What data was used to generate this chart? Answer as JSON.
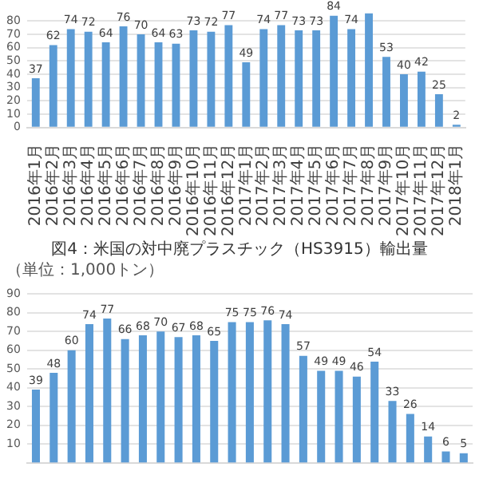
{
  "chart_data": [
    {
      "type": "bar",
      "categories": [
        "2016年1月",
        "2016年2月",
        "2016年3月",
        "2016年4月",
        "2016年5月",
        "2016年6月",
        "2016年7月",
        "2016年8月",
        "2016年9月",
        "2016年10月",
        "2016年11月",
        "2016年12月",
        "2017年1月",
        "2017年2月",
        "2017年3月",
        "2017年4月",
        "2017年5月",
        "2017年6月",
        "2017年7月",
        "2017年8月",
        "2017年9月",
        "2017年10月",
        "2017年11月",
        "2017年12月",
        "2018年1月"
      ],
      "values": [
        37,
        62,
        74,
        72,
        64,
        76,
        70,
        64,
        63,
        73,
        72,
        77,
        49,
        74,
        77,
        73,
        73,
        84,
        74,
        86,
        53,
        40,
        42,
        25,
        2
      ],
      "value_labels": [
        "37",
        "62",
        "74",
        "72",
        "64",
        "76",
        "70",
        "64",
        "63",
        "73",
        "72",
        "77",
        "49",
        "74",
        "77",
        "73",
        "73",
        "84",
        "74",
        null,
        "53",
        "40",
        "42",
        "25",
        "2"
      ],
      "color": "#5b9bd5",
      "ylim": [
        0,
        86
      ],
      "yticks": [
        0,
        10,
        20,
        30,
        40,
        50,
        60,
        70,
        80
      ],
      "grid": "y"
    },
    {
      "type": "bar",
      "title": "図4：米国の対中廃プラスチック（HS3915）輸出量",
      "ylabel": "（単位：1,000トン）",
      "categories": [
        null,
        null,
        null,
        null,
        null,
        null,
        null,
        null,
        null,
        null,
        null,
        null,
        null,
        null,
        null,
        null,
        null,
        null,
        null,
        null,
        null,
        null,
        null,
        null,
        null
      ],
      "values": [
        39,
        48,
        60,
        74,
        77,
        66,
        68,
        70,
        67,
        68,
        65,
        75,
        75,
        76,
        74,
        57,
        49,
        49,
        46,
        54,
        33,
        26,
        14,
        6,
        5
      ],
      "color": "#5b9bd5",
      "ylim": [
        0,
        90
      ],
      "yticks": [
        10,
        20,
        30,
        40,
        50,
        60,
        70,
        80,
        90
      ],
      "grid": "y",
      "data_labels": true,
      "tick_labels": "y"
    }
  ]
}
